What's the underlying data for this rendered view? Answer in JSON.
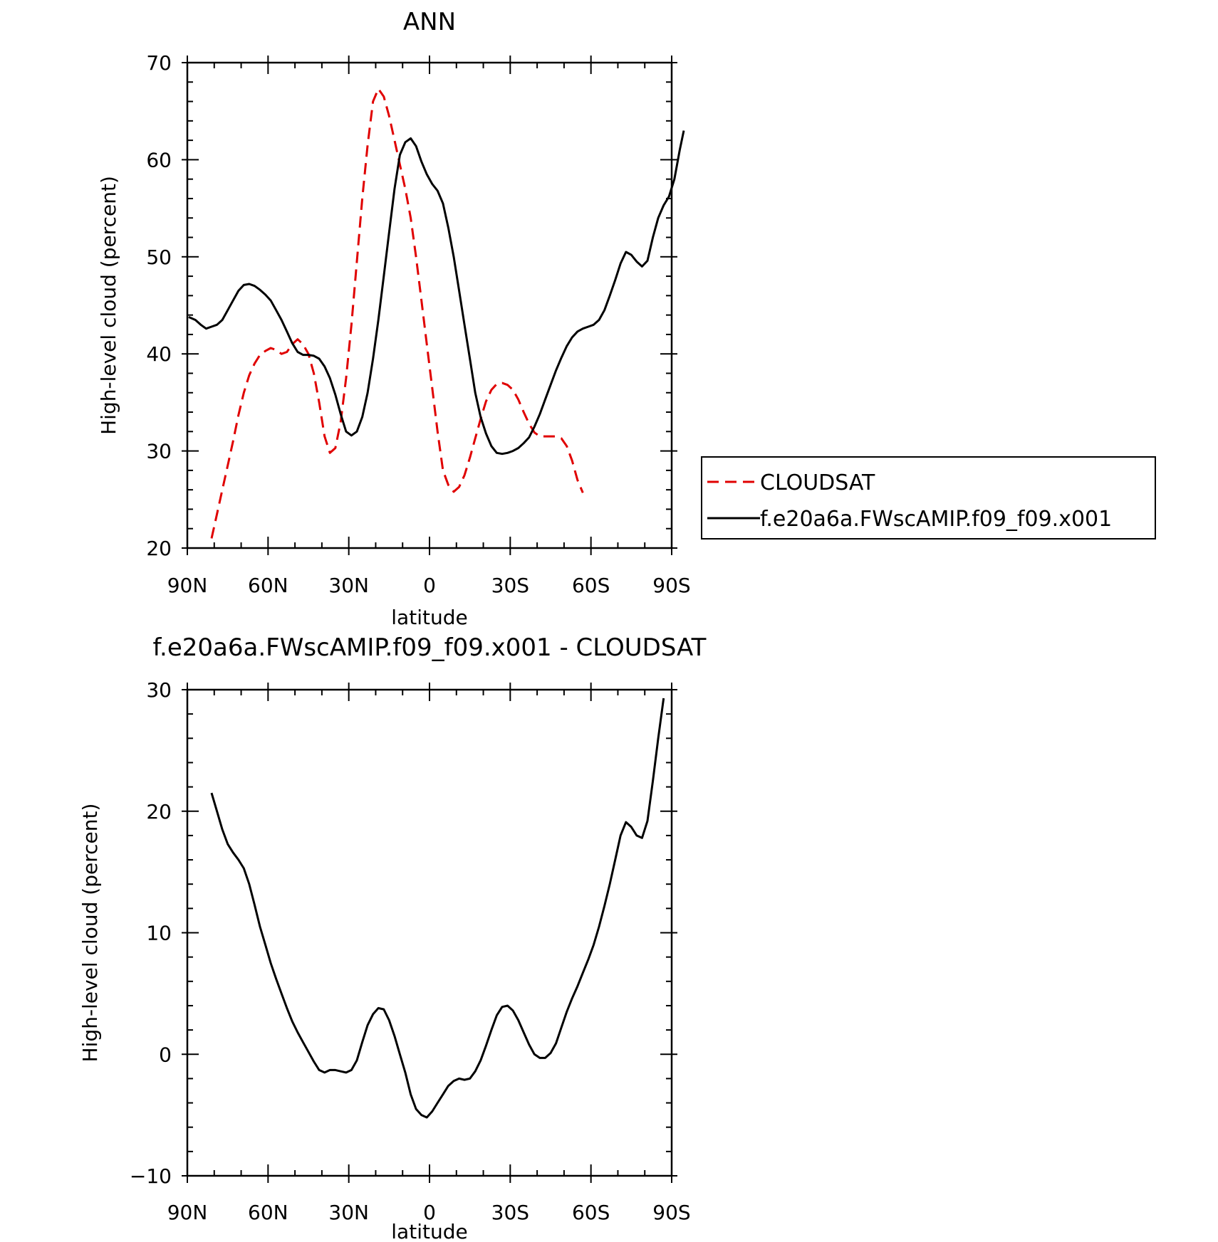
{
  "chart_data": [
    {
      "type": "line",
      "title": "ANN",
      "xlabel": "latitude",
      "ylabel": "High-level cloud (percent)",
      "xlim": [
        90,
        -90
      ],
      "ylim": [
        20,
        70
      ],
      "x_tick_values": [
        90,
        60,
        30,
        0,
        -30,
        -60,
        -90
      ],
      "x_tick_labels": [
        "90N",
        "60N",
        "30N",
        "0",
        "30S",
        "60S",
        "90S"
      ],
      "y_tick_values": [
        20,
        30,
        40,
        50,
        60,
        70
      ],
      "y_tick_labels": [
        "20",
        "30",
        "40",
        "50",
        "60",
        "70"
      ],
      "grid": false,
      "legend_position": "right",
      "series": [
        {
          "name": "CLOUDSAT",
          "color": "#e00000",
          "dash": "dashed",
          "points": [
            [
              81,
              21
            ],
            [
              79,
              23.5
            ],
            [
              77,
              26
            ],
            [
              75,
              28.5
            ],
            [
              73,
              31
            ],
            [
              71,
              33.7
            ],
            [
              69,
              36
            ],
            [
              67,
              37.8
            ],
            [
              65,
              39
            ],
            [
              63,
              39.9
            ],
            [
              61,
              40.3
            ],
            [
              59,
              40.6
            ],
            [
              57,
              40.4
            ],
            [
              55,
              40
            ],
            [
              53,
              40.2
            ],
            [
              51,
              41
            ],
            [
              49,
              41.5
            ],
            [
              47,
              41
            ],
            [
              45,
              40
            ],
            [
              43,
              38
            ],
            [
              41,
              35
            ],
            [
              39,
              31.5
            ],
            [
              37,
              29.8
            ],
            [
              35,
              30.3
            ],
            [
              33,
              33
            ],
            [
              31,
              37.5
            ],
            [
              29,
              43
            ],
            [
              27,
              49.5
            ],
            [
              25,
              56
            ],
            [
              23,
              61.5
            ],
            [
              21,
              66
            ],
            [
              19,
              67.3
            ],
            [
              17,
              66.5
            ],
            [
              15,
              64.5
            ],
            [
              13,
              62
            ],
            [
              11,
              59.5
            ],
            [
              9,
              57
            ],
            [
              7,
              54
            ],
            [
              5,
              50
            ],
            [
              3,
              45.5
            ],
            [
              1,
              41
            ],
            [
              -1,
              36.5
            ],
            [
              -3,
              32
            ],
            [
              -5,
              28
            ],
            [
              -7,
              26.5
            ],
            [
              -9,
              25.8
            ],
            [
              -11,
              26.3
            ],
            [
              -13,
              27.5
            ],
            [
              -15,
              29.3
            ],
            [
              -17,
              31.3
            ],
            [
              -19,
              33.3
            ],
            [
              -21,
              35.1
            ],
            [
              -23,
              36.3
            ],
            [
              -25,
              36.9
            ],
            [
              -27,
              37
            ],
            [
              -29,
              36.8
            ],
            [
              -31,
              36.3
            ],
            [
              -33,
              35.3
            ],
            [
              -35,
              34
            ],
            [
              -37,
              32.8
            ],
            [
              -39,
              31.9
            ],
            [
              -41,
              31.5
            ],
            [
              -43,
              31.5
            ],
            [
              -45,
              31.5
            ],
            [
              -47,
              31.5
            ],
            [
              -49,
              31.3
            ],
            [
              -51,
              30.5
            ],
            [
              -53,
              29
            ],
            [
              -55,
              27
            ],
            [
              -57,
              25.7
            ]
          ]
        },
        {
          "name": "f.e20a6a.FWscAMIP.f09_f09.x001",
          "color": "#000000",
          "dash": "solid",
          "points": [
            [
              89.5,
              43.8
            ],
            [
              87,
              43.5
            ],
            [
              85,
              43
            ],
            [
              83,
              42.6
            ],
            [
              81,
              42.8
            ],
            [
              79,
              43
            ],
            [
              77,
              43.5
            ],
            [
              75,
              44.5
            ],
            [
              73,
              45.5
            ],
            [
              71,
              46.5
            ],
            [
              69,
              47.1
            ],
            [
              67,
              47.2
            ],
            [
              65,
              47
            ],
            [
              63,
              46.6
            ],
            [
              61,
              46.1
            ],
            [
              59,
              45.5
            ],
            [
              57,
              44.5
            ],
            [
              55,
              43.5
            ],
            [
              53,
              42.3
            ],
            [
              51,
              41.1
            ],
            [
              49,
              40.2
            ],
            [
              47,
              39.9
            ],
            [
              45,
              39.9
            ],
            [
              43,
              39.8
            ],
            [
              41,
              39.5
            ],
            [
              39,
              38.7
            ],
            [
              37,
              37.5
            ],
            [
              35,
              35.8
            ],
            [
              33,
              33.8
            ],
            [
              31,
              32
            ],
            [
              29,
              31.6
            ],
            [
              27,
              32
            ],
            [
              25,
              33.5
            ],
            [
              23,
              36
            ],
            [
              21,
              39.5
            ],
            [
              19,
              43.5
            ],
            [
              17,
              48
            ],
            [
              15,
              52.5
            ],
            [
              13,
              57
            ],
            [
              11,
              60.5
            ],
            [
              9,
              61.8
            ],
            [
              7,
              62.2
            ],
            [
              5,
              61.4
            ],
            [
              3,
              59.8
            ],
            [
              1,
              58.5
            ],
            [
              -1,
              57.5
            ],
            [
              -3,
              56.8
            ],
            [
              -5,
              55.5
            ],
            [
              -7,
              53
            ],
            [
              -9,
              50
            ],
            [
              -11,
              46.5
            ],
            [
              -13,
              43
            ],
            [
              -15,
              39.5
            ],
            [
              -17,
              36
            ],
            [
              -19,
              33.5
            ],
            [
              -21,
              31.8
            ],
            [
              -23,
              30.5
            ],
            [
              -25,
              29.8
            ],
            [
              -27,
              29.7
            ],
            [
              -29,
              29.8
            ],
            [
              -31,
              30
            ],
            [
              -33,
              30.3
            ],
            [
              -35,
              30.8
            ],
            [
              -37,
              31.4
            ],
            [
              -39,
              32.5
            ],
            [
              -41,
              33.8
            ],
            [
              -43,
              35.3
            ],
            [
              -45,
              36.8
            ],
            [
              -47,
              38.3
            ],
            [
              -49,
              39.6
            ],
            [
              -51,
              40.8
            ],
            [
              -53,
              41.7
            ],
            [
              -55,
              42.3
            ],
            [
              -57,
              42.6
            ],
            [
              -59,
              42.8
            ],
            [
              -61,
              43
            ],
            [
              -63,
              43.5
            ],
            [
              -65,
              44.5
            ],
            [
              -67,
              46
            ],
            [
              -69,
              47.6
            ],
            [
              -71,
              49.3
            ],
            [
              -73,
              50.5
            ],
            [
              -75,
              50.2
            ],
            [
              -77,
              49.5
            ],
            [
              -79,
              49
            ],
            [
              -81,
              49.6
            ],
            [
              -83,
              52
            ],
            [
              -85,
              54
            ],
            [
              -87,
              55.3
            ],
            [
              -89,
              56.2
            ],
            [
              -91,
              58
            ],
            [
              -93,
              61
            ],
            [
              -94.5,
              63
            ]
          ]
        }
      ]
    },
    {
      "type": "line",
      "title": "f.e20a6a.FWscAMIP.f09_f09.x001 - CLOUDSAT",
      "xlabel": "latitude",
      "ylabel": "High-level cloud (percent)",
      "xlim": [
        90,
        -90
      ],
      "ylim": [
        -10,
        30
      ],
      "x_tick_values": [
        90,
        60,
        30,
        0,
        -30,
        -60,
        -90
      ],
      "x_tick_labels": [
        "90N",
        "60N",
        "30N",
        "0",
        "30S",
        "60S",
        "90S"
      ],
      "y_tick_values": [
        -10,
        0,
        10,
        20,
        30
      ],
      "y_tick_labels": [
        "−10",
        "0",
        "10",
        "20",
        "30"
      ],
      "grid": false,
      "series": [
        {
          "color": "#000000",
          "dash": "solid",
          "points": [
            [
              81,
              21.5
            ],
            [
              79,
              20
            ],
            [
              77,
              18.5
            ],
            [
              75,
              17.3
            ],
            [
              73,
              16.6
            ],
            [
              71,
              16
            ],
            [
              69,
              15.3
            ],
            [
              67,
              14
            ],
            [
              65,
              12.3
            ],
            [
              63,
              10.5
            ],
            [
              61,
              9
            ],
            [
              59,
              7.5
            ],
            [
              57,
              6.2
            ],
            [
              55,
              5
            ],
            [
              53,
              3.8
            ],
            [
              51,
              2.7
            ],
            [
              49,
              1.8
            ],
            [
              47,
              1
            ],
            [
              45,
              0.2
            ],
            [
              43,
              -0.6
            ],
            [
              41,
              -1.3
            ],
            [
              39,
              -1.5
            ],
            [
              37,
              -1.3
            ],
            [
              35,
              -1.3
            ],
            [
              33,
              -1.4
            ],
            [
              31,
              -1.5
            ],
            [
              29,
              -1.3
            ],
            [
              27,
              -0.5
            ],
            [
              25,
              1
            ],
            [
              23,
              2.4
            ],
            [
              21,
              3.3
            ],
            [
              19,
              3.8
            ],
            [
              17,
              3.7
            ],
            [
              15,
              2.8
            ],
            [
              13,
              1.5
            ],
            [
              11,
              0
            ],
            [
              9,
              -1.5
            ],
            [
              7,
              -3.3
            ],
            [
              5,
              -4.5
            ],
            [
              3,
              -5
            ],
            [
              1,
              -5.2
            ],
            [
              -1,
              -4.7
            ],
            [
              -3,
              -4
            ],
            [
              -5,
              -3.3
            ],
            [
              -7,
              -2.6
            ],
            [
              -9,
              -2.2
            ],
            [
              -11,
              -2
            ],
            [
              -13,
              -2.1
            ],
            [
              -15,
              -2
            ],
            [
              -17,
              -1.4
            ],
            [
              -19,
              -0.5
            ],
            [
              -21,
              0.7
            ],
            [
              -23,
              2
            ],
            [
              -25,
              3.2
            ],
            [
              -27,
              3.9
            ],
            [
              -29,
              4
            ],
            [
              -31,
              3.6
            ],
            [
              -33,
              2.8
            ],
            [
              -35,
              1.8
            ],
            [
              -37,
              0.8
            ],
            [
              -39,
              0
            ],
            [
              -41,
              -0.3
            ],
            [
              -43,
              -0.3
            ],
            [
              -45,
              0.1
            ],
            [
              -47,
              0.9
            ],
            [
              -49,
              2.2
            ],
            [
              -51,
              3.5
            ],
            [
              -53,
              4.6
            ],
            [
              -55,
              5.6
            ],
            [
              -57,
              6.7
            ],
            [
              -59,
              7.8
            ],
            [
              -61,
              9
            ],
            [
              -63,
              10.5
            ],
            [
              -65,
              12.2
            ],
            [
              -67,
              14
            ],
            [
              -69,
              16
            ],
            [
              -71,
              18
            ],
            [
              -73,
              19.1
            ],
            [
              -75,
              18.7
            ],
            [
              -77,
              18
            ],
            [
              -79,
              17.8
            ],
            [
              -81,
              19.2
            ],
            [
              -83,
              22.5
            ],
            [
              -85,
              26
            ],
            [
              -87,
              29.3
            ]
          ]
        }
      ]
    }
  ]
}
